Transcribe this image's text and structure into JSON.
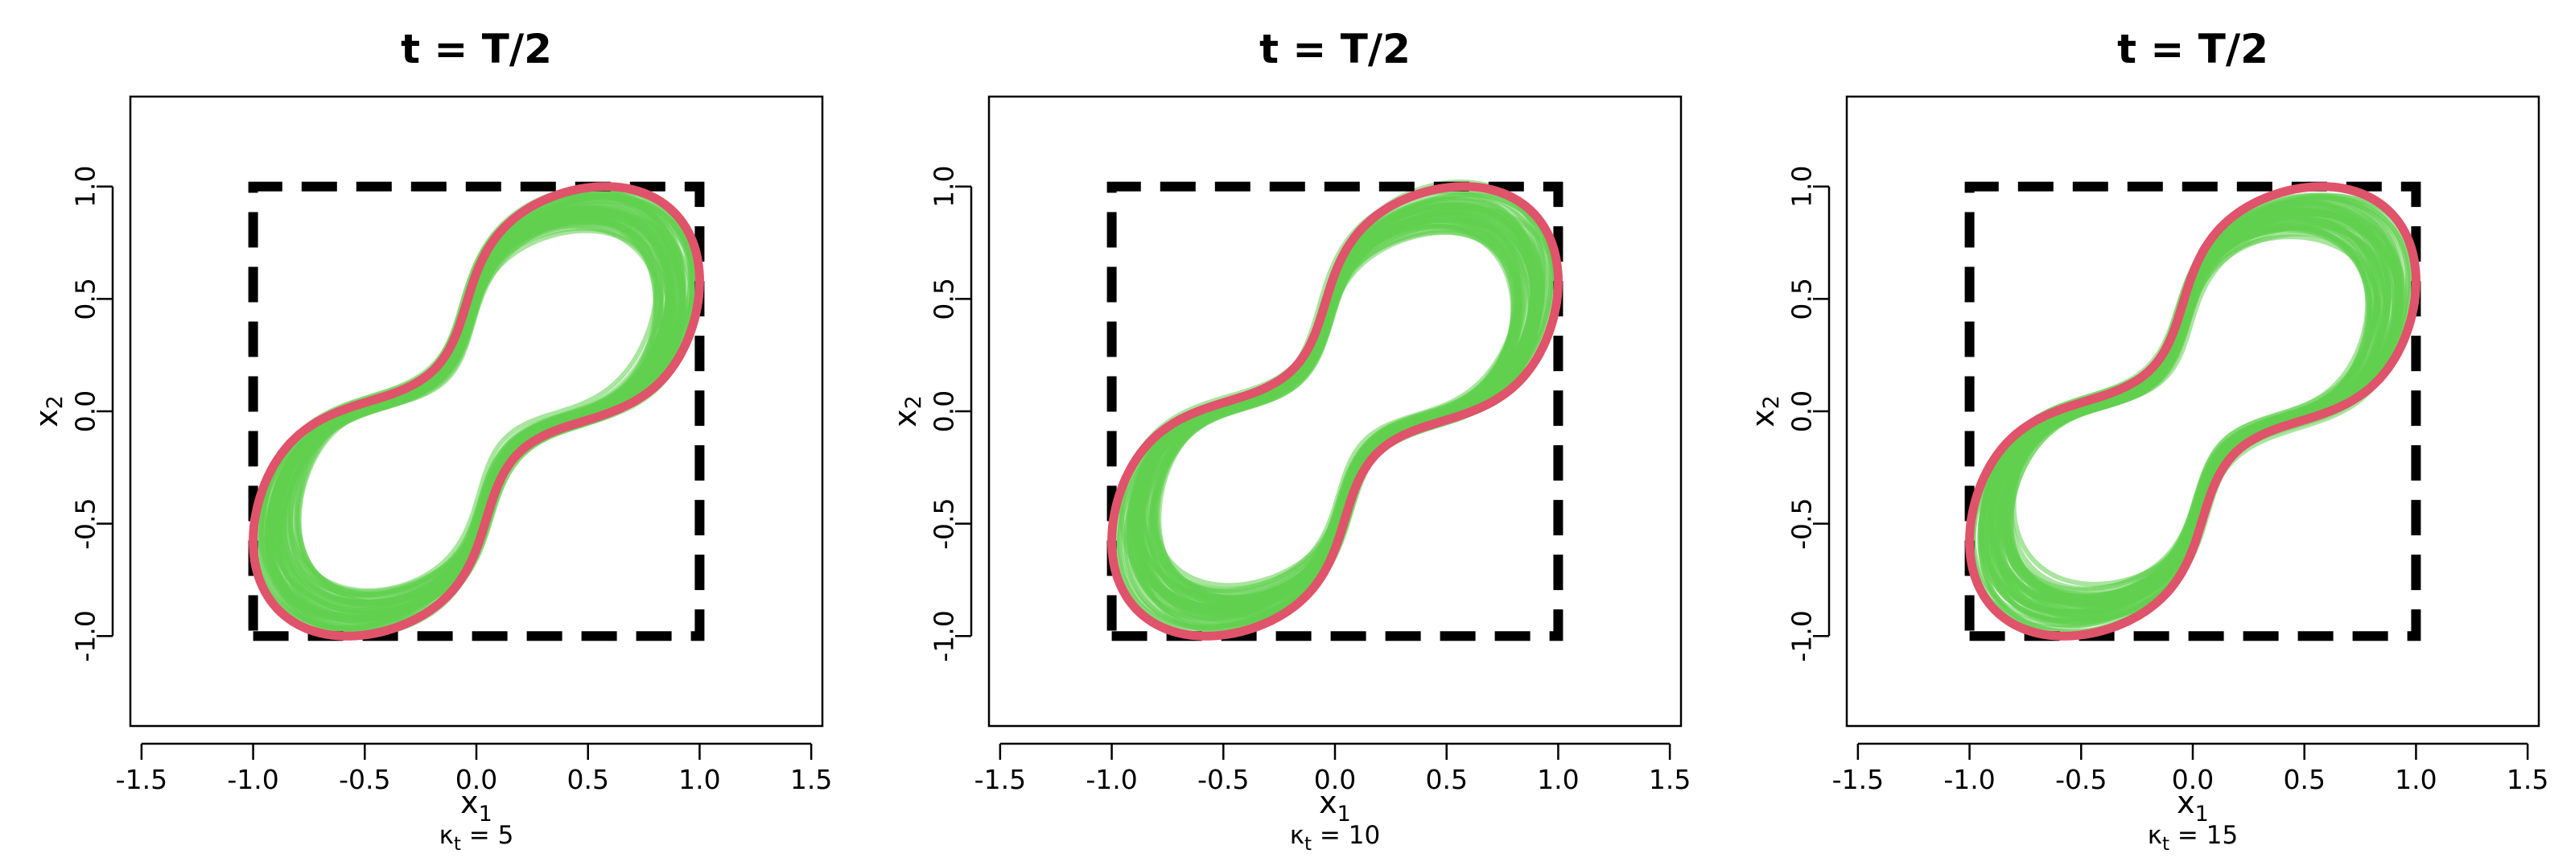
{
  "chart_data": [
    {
      "type": "line",
      "title": "t = T/2",
      "xlabel": {
        "base": "x",
        "sub": "1"
      },
      "ylabel": {
        "base": "x",
        "sub": "2"
      },
      "caption": {
        "base": "κ",
        "sub": "t",
        "text": " = 5"
      },
      "xlim": [
        -1.55,
        1.55
      ],
      "ylim": [
        -1.4,
        1.4
      ],
      "xticks": [
        -1.5,
        -1.0,
        -0.5,
        0.0,
        0.5,
        1.0,
        1.5
      ],
      "xtick_labels": [
        "-1.5",
        "-1.0",
        "-0.5",
        "0.0",
        "0.5",
        "1.0",
        "1.5"
      ],
      "yticks": [
        -1.0,
        -0.5,
        0.0,
        0.5,
        1.0
      ],
      "ytick_labels": [
        "-1.0",
        "-0.5",
        "0.0",
        "0.5",
        "1.0"
      ],
      "box": {
        "x": [
          -1,
          1,
          1,
          -1,
          -1
        ],
        "y": [
          -1,
          -1,
          1,
          1,
          -1
        ],
        "color": "#000000",
        "style": "dashed"
      },
      "green_band": {
        "color": "#61D04F",
        "copies": 50,
        "note_visual": "ensemble of closed curves"
      },
      "shape": {
        "lobe_center_x": 0.35,
        "lobe_center_y": 0.35,
        "lobe_radius": 0.62,
        "neck_offset": 0.0
      },
      "red_curve": {
        "color": "#DF536B",
        "x_max": 1.0,
        "y_max": 1.0
      }
    },
    {
      "type": "line",
      "title": "t = T/2",
      "xlabel": {
        "base": "x",
        "sub": "1"
      },
      "ylabel": {
        "base": "x",
        "sub": "2"
      },
      "caption": {
        "base": "κ",
        "sub": "t",
        "text": " = 10"
      },
      "xlim": [
        -1.55,
        1.55
      ],
      "ylim": [
        -1.4,
        1.4
      ],
      "xticks": [
        -1.5,
        -1.0,
        -0.5,
        0.0,
        0.5,
        1.0,
        1.5
      ],
      "xtick_labels": [
        "-1.5",
        "-1.0",
        "-0.5",
        "0.0",
        "0.5",
        "1.0",
        "1.5"
      ],
      "yticks": [
        -1.0,
        -0.5,
        0.0,
        0.5,
        1.0
      ],
      "ytick_labels": [
        "-1.0",
        "-0.5",
        "0.0",
        "0.5",
        "1.0"
      ],
      "box": {
        "x": [
          -1,
          1,
          1,
          -1,
          -1
        ],
        "y": [
          -1,
          -1,
          1,
          1,
          -1
        ],
        "color": "#000000",
        "style": "dashed"
      },
      "green_band": {
        "color": "#61D04F",
        "copies": 50,
        "note_visual": "ensemble of closed curves"
      },
      "shape": {
        "lobe_center_x": 0.35,
        "lobe_center_y": 0.35,
        "lobe_radius": 0.62,
        "neck_offset": 0.0
      },
      "red_curve": {
        "color": "#DF536B",
        "x_max": 1.0,
        "y_max": 1.0
      }
    },
    {
      "type": "line",
      "title": "t = T/2",
      "xlabel": {
        "base": "x",
        "sub": "1"
      },
      "ylabel": {
        "base": "x",
        "sub": "2"
      },
      "caption": {
        "base": "κ",
        "sub": "t",
        "text": " = 15"
      },
      "xlim": [
        -1.55,
        1.55
      ],
      "ylim": [
        -1.4,
        1.4
      ],
      "xticks": [
        -1.5,
        -1.0,
        -0.5,
        0.0,
        0.5,
        1.0,
        1.5
      ],
      "xtick_labels": [
        "-1.5",
        "-1.0",
        "-0.5",
        "0.0",
        "0.5",
        "1.0",
        "1.5"
      ],
      "yticks": [
        -1.0,
        -0.5,
        0.0,
        0.5,
        1.0
      ],
      "ytick_labels": [
        "-1.0",
        "-0.5",
        "0.0",
        "0.5",
        "1.0"
      ],
      "box": {
        "x": [
          -1,
          1,
          1,
          -1,
          -1
        ],
        "y": [
          -1,
          -1,
          1,
          1,
          -1
        ],
        "color": "#000000",
        "style": "dashed"
      },
      "green_band": {
        "color": "#61D04F",
        "copies": 50,
        "note_visual": "ensemble of closed curves"
      },
      "shape": {
        "lobe_center_x": 0.35,
        "lobe_center_y": 0.35,
        "lobe_radius": 0.62,
        "neck_offset": 0.0
      },
      "red_curve": {
        "color": "#DF536B",
        "x_max": 1.0,
        "y_max": 1.0
      }
    }
  ]
}
